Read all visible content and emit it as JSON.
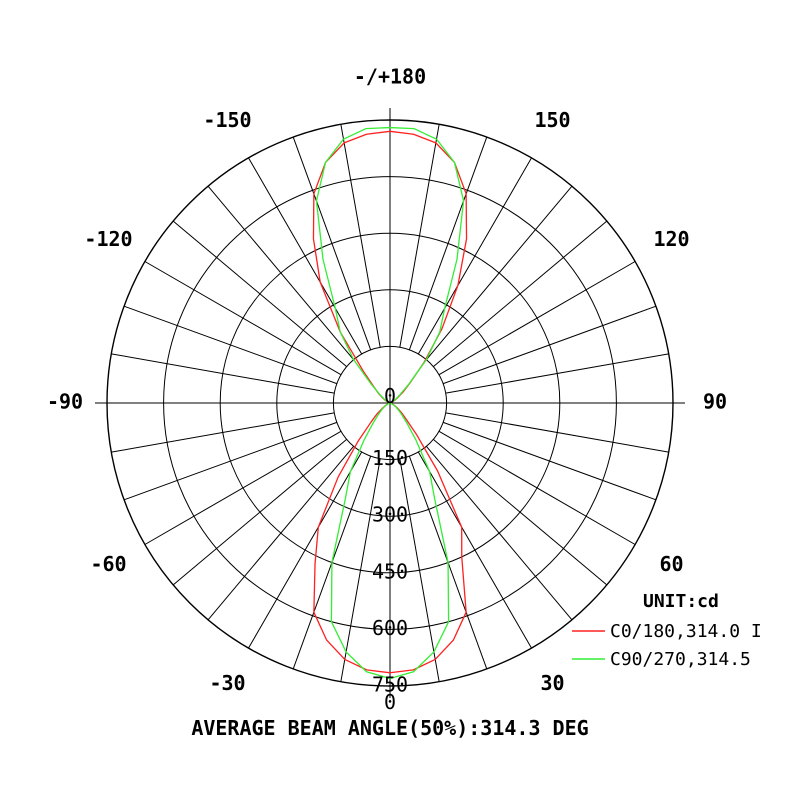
{
  "chart_data": {
    "type": "polar",
    "unit_label": "UNIT:cd",
    "footer": "AVERAGE BEAM ANGLE(50%):314.3 DEG",
    "radial_max": 750,
    "radial_ticks": [
      0,
      150,
      300,
      450,
      600,
      750
    ],
    "radial_tick_labels": [
      "0",
      "150",
      "300",
      "450",
      "600",
      "750"
    ],
    "angle_labels": [
      {
        "angle": 180,
        "text": "-/+180"
      },
      {
        "angle": 150,
        "text": "150"
      },
      {
        "angle": -150,
        "text": "-150"
      },
      {
        "angle": 120,
        "text": "120"
      },
      {
        "angle": -120,
        "text": "-120"
      },
      {
        "angle": 90,
        "text": "90"
      },
      {
        "angle": -90,
        "text": "-90"
      },
      {
        "angle": 60,
        "text": "60"
      },
      {
        "angle": -60,
        "text": "-60"
      },
      {
        "angle": 30,
        "text": "30"
      },
      {
        "angle": -30,
        "text": "-30"
      }
    ],
    "series": [
      {
        "name": "C0/180,314.0 I",
        "color": "#ff2020",
        "angles": [
          0,
          5,
          10,
          15,
          20,
          25,
          30,
          35,
          40,
          45,
          50,
          55,
          60,
          70,
          80,
          90,
          100,
          110,
          120,
          125,
          130,
          135,
          140,
          145,
          150,
          155,
          160,
          165,
          170,
          175,
          180,
          185,
          190,
          195,
          200,
          205,
          210,
          215,
          220,
          225,
          230,
          235,
          240,
          250,
          260,
          270,
          280,
          290,
          300,
          305,
          310,
          315,
          320,
          325,
          330,
          335,
          340,
          345,
          350,
          355,
          360
        ],
        "values": [
          715,
          710,
          690,
          650,
          590,
          450,
          380,
          220,
          110,
          60,
          40,
          25,
          15,
          5,
          0,
          0,
          0,
          5,
          15,
          25,
          45,
          75,
          140,
          240,
          360,
          480,
          590,
          660,
          700,
          715,
          720,
          715,
          700,
          660,
          590,
          480,
          370,
          230,
          110,
          60,
          40,
          25,
          15,
          5,
          0,
          0,
          0,
          5,
          15,
          25,
          45,
          70,
          130,
          240,
          380,
          470,
          590,
          650,
          690,
          710,
          715
        ]
      },
      {
        "name": "C90/270,314.5",
        "color": "#33ee33",
        "angles": [
          0,
          5,
          10,
          15,
          20,
          25,
          30,
          35,
          40,
          45,
          50,
          55,
          60,
          70,
          80,
          90,
          100,
          110,
          120,
          125,
          130,
          135,
          140,
          145,
          150,
          155,
          160,
          165,
          170,
          175,
          180,
          185,
          190,
          195,
          200,
          205,
          210,
          215,
          220,
          225,
          230,
          235,
          240,
          250,
          260,
          270,
          280,
          290,
          300,
          305,
          310,
          315,
          320,
          325,
          330,
          335,
          340,
          345,
          350,
          355,
          360
        ],
        "values": [
          730,
          715,
          670,
          600,
          450,
          280,
          210,
          120,
          70,
          45,
          30,
          20,
          12,
          4,
          0,
          0,
          0,
          4,
          12,
          20,
          35,
          70,
          150,
          230,
          290,
          420,
          570,
          660,
          710,
          730,
          730,
          730,
          710,
          660,
          570,
          420,
          290,
          230,
          150,
          70,
          35,
          20,
          12,
          4,
          0,
          0,
          0,
          4,
          12,
          20,
          30,
          45,
          70,
          120,
          210,
          280,
          450,
          600,
          670,
          715,
          730
        ]
      }
    ],
    "legend_position": "bottom-right"
  }
}
